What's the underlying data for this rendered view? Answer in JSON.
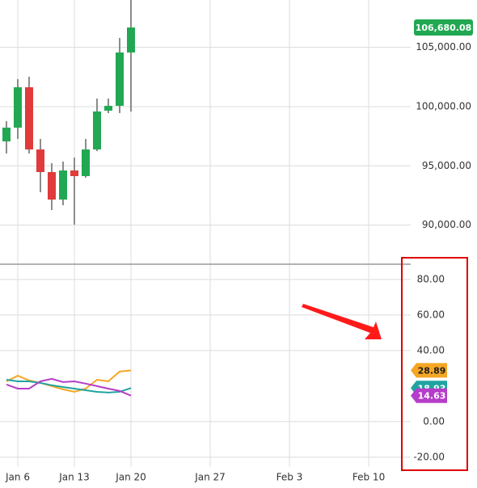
{
  "chart_data": [
    {
      "type": "candlestick",
      "x": [
        0,
        1,
        2,
        3,
        4,
        5,
        6,
        7,
        8,
        9,
        10,
        11
      ],
      "open": [
        97067,
        98227,
        101637,
        96385,
        94476,
        92157,
        94612,
        94135,
        96385,
        99659,
        100068,
        104570
      ],
      "high": [
        98772,
        102319,
        102523,
        97272,
        95226,
        95362,
        95703,
        97272,
        100682,
        100682,
        105797,
        109000
      ],
      "low": [
        96044,
        97272,
        96044,
        92771,
        91270,
        91680,
        90043,
        94000,
        96249,
        99454,
        99454,
        99591
      ],
      "close": [
        98227,
        101637,
        96385,
        94476,
        92157,
        94612,
        94135,
        96385,
        99591,
        100068,
        104570,
        106680.08
      ],
      "up_color": "#22a852",
      "down_color": "#e03a3a",
      "last_close_label": "106,680.08",
      "xlim": [
        -0.57,
        35.71
      ],
      "ylim": [
        86700,
        109000
      ],
      "yticks": [
        {
          "value": 90000,
          "label": "90,000.00"
        },
        {
          "value": 95000,
          "label": "95,000.00"
        },
        {
          "value": 100000,
          "label": "100,000.00"
        },
        {
          "value": 105000,
          "label": "105,000.00"
        }
      ],
      "grid": true
    },
    {
      "type": "line",
      "x": [
        0,
        1,
        2,
        3,
        4,
        5,
        6,
        7,
        8,
        9,
        10,
        11
      ],
      "series": [
        {
          "color": "#f5a623",
          "values": [
            22.7,
            25.9,
            23.2,
            21.8,
            20,
            18.2,
            16.8,
            18.6,
            23.6,
            22.7,
            28.2,
            28.89
          ],
          "last_value_label": "28.89"
        },
        {
          "color": "#1fa3a0",
          "values": [
            23.6,
            22.7,
            22.7,
            21.8,
            20.5,
            19.5,
            18.6,
            17.7,
            16.8,
            16.4,
            16.8,
            18.93
          ],
          "last_value_label": "18.93"
        },
        {
          "color": "#b53dc9",
          "values": [
            20.9,
            18.6,
            18.6,
            22.7,
            24.1,
            22.3,
            22.7,
            21.4,
            20,
            18.6,
            17.3,
            14.63
          ],
          "last_value_label": "14.63"
        }
      ],
      "xlim": [
        -0.57,
        35.71
      ],
      "ylim": [
        -25.5,
        88.6
      ],
      "yticks": [
        {
          "value": -20,
          "label": "-20.00"
        },
        {
          "value": 0,
          "label": "0.00"
        },
        {
          "value": 40,
          "label": "40.00"
        },
        {
          "value": 60,
          "label": "60.00"
        },
        {
          "value": 80,
          "label": "80.00"
        }
      ],
      "xticks": [
        {
          "value": 1,
          "label": "Jan 6"
        },
        {
          "value": 6,
          "label": "Jan 13"
        },
        {
          "value": 11,
          "label": "Jan 20"
        },
        {
          "value": 18,
          "label": "Jan 27"
        },
        {
          "value": 25,
          "label": "Feb 3"
        },
        {
          "value": 32,
          "label": "Feb 10"
        }
      ],
      "grid": true
    }
  ]
}
